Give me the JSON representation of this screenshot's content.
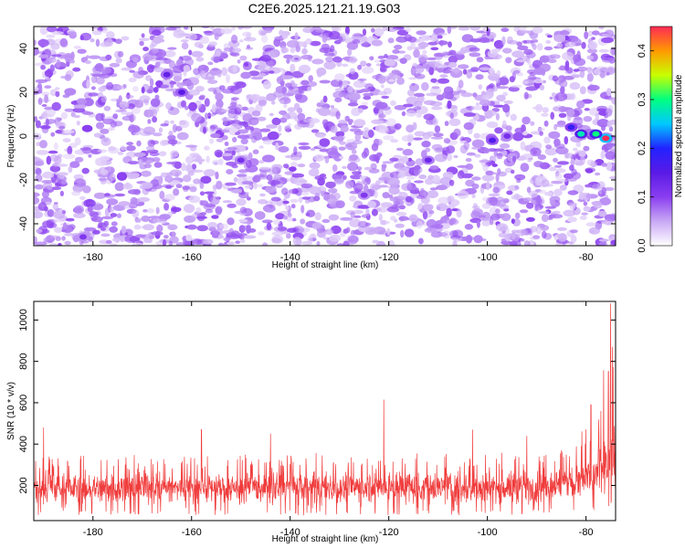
{
  "title": "C2E6.2025.121.21.19.G03",
  "chart_data": [
    {
      "type": "heatmap",
      "xlabel": "Height of straight line (km)",
      "ylabel": "Frequency (Hz)",
      "xlim": [
        -192,
        -74
      ],
      "ylim": [
        -50,
        50
      ],
      "xticks": [
        -180,
        -160,
        -140,
        -120,
        -100,
        -80
      ],
      "yticks": [
        -40,
        -20,
        0,
        20,
        40
      ],
      "colorbar": {
        "label": "Normalized spectral amplitude",
        "range": [
          0,
          0.45
        ],
        "ticks": [
          "0.0",
          "0.1",
          "0.2",
          "0.3",
          "0.4"
        ]
      },
      "colormap": [
        "#ffffff",
        "#c9a8f5",
        "#8a3ef0",
        "#5a1ae6",
        "#2222ff",
        "#00c8ff",
        "#00ff80",
        "#c8ff00",
        "#ff9900",
        "#ff2a55"
      ],
      "background_level": 0.06,
      "hotspots": [
        {
          "x": -76,
          "y": -1,
          "value": 0.45
        },
        {
          "x": -78,
          "y": 1,
          "value": 0.3
        },
        {
          "x": -81,
          "y": 1,
          "value": 0.28
        },
        {
          "x": -83,
          "y": 4,
          "value": 0.18
        },
        {
          "x": -99,
          "y": -2,
          "value": 0.16
        },
        {
          "x": -162,
          "y": 20,
          "value": 0.15
        },
        {
          "x": -165,
          "y": 28,
          "value": 0.14
        },
        {
          "x": -112,
          "y": -11,
          "value": 0.13
        },
        {
          "x": -96,
          "y": 0,
          "value": 0.12
        },
        {
          "x": -150,
          "y": -11,
          "value": 0.12
        },
        {
          "x": -125,
          "y": -27,
          "value": 0.11
        },
        {
          "x": -182,
          "y": -46,
          "value": 0.11
        }
      ]
    },
    {
      "type": "line",
      "xlabel": "Height of straight line (km)",
      "ylabel": "SNR (10 * v/v)",
      "xlim": [
        -192,
        -74
      ],
      "ylim": [
        30,
        1090
      ],
      "xticks": [
        -180,
        -160,
        -140,
        -120,
        -100,
        -80
      ],
      "yticks": [
        200,
        400,
        600,
        800,
        1000
      ],
      "series": [
        {
          "color": "#f03c3c",
          "envelope": {
            "x": [
              -192,
              -180,
              -170,
              -160,
              -150,
              -140,
              -130,
              -120,
              -110,
              -100,
              -90,
              -85,
              -80,
              -78,
              -76,
              -75
            ],
            "typical": [
              190,
              185,
              190,
              185,
              190,
              190,
              190,
              200,
              190,
              190,
              195,
              205,
              225,
              250,
              300,
              330
            ],
            "spread_low": [
              80,
              80,
              80,
              80,
              80,
              80,
              80,
              80,
              80,
              80,
              85,
              90,
              100,
              110,
              130,
              140
            ],
            "spread_high": [
              280,
              280,
              280,
              280,
              280,
              285,
              285,
              290,
              285,
              285,
              300,
              320,
              380,
              450,
              650,
              700
            ]
          },
          "peaks": [
            {
              "x": -190,
              "y": 480
            },
            {
              "x": -158,
              "y": 470
            },
            {
              "x": -144,
              "y": 450
            },
            {
              "x": -121,
              "y": 615
            },
            {
              "x": -103,
              "y": 470
            },
            {
              "x": -92,
              "y": 440
            },
            {
              "x": -79,
              "y": 590
            },
            {
              "x": -77,
              "y": 560
            },
            {
              "x": -75.5,
              "y": 750
            },
            {
              "x": -75,
              "y": 1080
            },
            {
              "x": -74.6,
              "y": 870
            }
          ]
        }
      ]
    }
  ]
}
